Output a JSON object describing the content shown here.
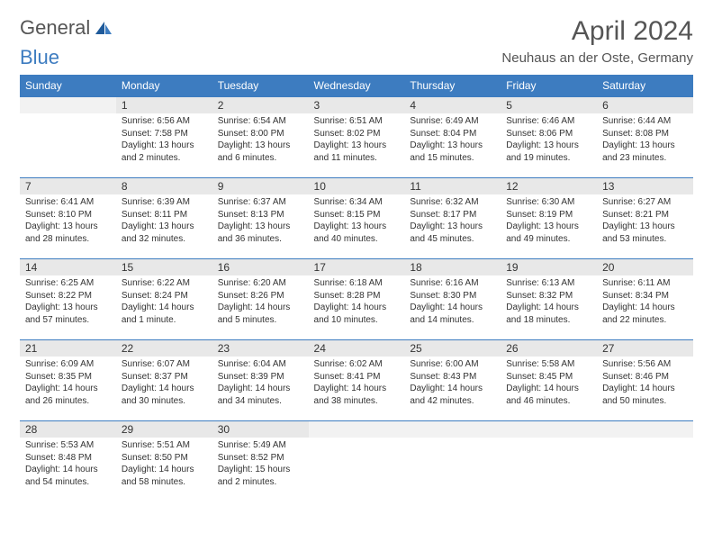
{
  "logo": {
    "text1": "General",
    "text2": "Blue"
  },
  "title": "April 2024",
  "location": "Neuhaus an der Oste, Germany",
  "colors": {
    "header_bg": "#3d7cc0",
    "header_text": "#ffffff",
    "daynum_bg": "#e8e8e8",
    "border": "#3d7cc0",
    "body_bg": "#ffffff",
    "text": "#333333"
  },
  "weekdays": [
    "Sunday",
    "Monday",
    "Tuesday",
    "Wednesday",
    "Thursday",
    "Friday",
    "Saturday"
  ],
  "typography": {
    "title_fontsize": 30,
    "location_fontsize": 15,
    "weekday_fontsize": 12,
    "cell_fontsize": 10
  },
  "layout": {
    "columns": 7,
    "rows": 5,
    "first_day_column_index": 1
  },
  "days": [
    {
      "n": "1",
      "sunrise": "Sunrise: 6:56 AM",
      "sunset": "Sunset: 7:58 PM",
      "daylight": "Daylight: 13 hours and 2 minutes."
    },
    {
      "n": "2",
      "sunrise": "Sunrise: 6:54 AM",
      "sunset": "Sunset: 8:00 PM",
      "daylight": "Daylight: 13 hours and 6 minutes."
    },
    {
      "n": "3",
      "sunrise": "Sunrise: 6:51 AM",
      "sunset": "Sunset: 8:02 PM",
      "daylight": "Daylight: 13 hours and 11 minutes."
    },
    {
      "n": "4",
      "sunrise": "Sunrise: 6:49 AM",
      "sunset": "Sunset: 8:04 PM",
      "daylight": "Daylight: 13 hours and 15 minutes."
    },
    {
      "n": "5",
      "sunrise": "Sunrise: 6:46 AM",
      "sunset": "Sunset: 8:06 PM",
      "daylight": "Daylight: 13 hours and 19 minutes."
    },
    {
      "n": "6",
      "sunrise": "Sunrise: 6:44 AM",
      "sunset": "Sunset: 8:08 PM",
      "daylight": "Daylight: 13 hours and 23 minutes."
    },
    {
      "n": "7",
      "sunrise": "Sunrise: 6:41 AM",
      "sunset": "Sunset: 8:10 PM",
      "daylight": "Daylight: 13 hours and 28 minutes."
    },
    {
      "n": "8",
      "sunrise": "Sunrise: 6:39 AM",
      "sunset": "Sunset: 8:11 PM",
      "daylight": "Daylight: 13 hours and 32 minutes."
    },
    {
      "n": "9",
      "sunrise": "Sunrise: 6:37 AM",
      "sunset": "Sunset: 8:13 PM",
      "daylight": "Daylight: 13 hours and 36 minutes."
    },
    {
      "n": "10",
      "sunrise": "Sunrise: 6:34 AM",
      "sunset": "Sunset: 8:15 PM",
      "daylight": "Daylight: 13 hours and 40 minutes."
    },
    {
      "n": "11",
      "sunrise": "Sunrise: 6:32 AM",
      "sunset": "Sunset: 8:17 PM",
      "daylight": "Daylight: 13 hours and 45 minutes."
    },
    {
      "n": "12",
      "sunrise": "Sunrise: 6:30 AM",
      "sunset": "Sunset: 8:19 PM",
      "daylight": "Daylight: 13 hours and 49 minutes."
    },
    {
      "n": "13",
      "sunrise": "Sunrise: 6:27 AM",
      "sunset": "Sunset: 8:21 PM",
      "daylight": "Daylight: 13 hours and 53 minutes."
    },
    {
      "n": "14",
      "sunrise": "Sunrise: 6:25 AM",
      "sunset": "Sunset: 8:22 PM",
      "daylight": "Daylight: 13 hours and 57 minutes."
    },
    {
      "n": "15",
      "sunrise": "Sunrise: 6:22 AM",
      "sunset": "Sunset: 8:24 PM",
      "daylight": "Daylight: 14 hours and 1 minute."
    },
    {
      "n": "16",
      "sunrise": "Sunrise: 6:20 AM",
      "sunset": "Sunset: 8:26 PM",
      "daylight": "Daylight: 14 hours and 5 minutes."
    },
    {
      "n": "17",
      "sunrise": "Sunrise: 6:18 AM",
      "sunset": "Sunset: 8:28 PM",
      "daylight": "Daylight: 14 hours and 10 minutes."
    },
    {
      "n": "18",
      "sunrise": "Sunrise: 6:16 AM",
      "sunset": "Sunset: 8:30 PM",
      "daylight": "Daylight: 14 hours and 14 minutes."
    },
    {
      "n": "19",
      "sunrise": "Sunrise: 6:13 AM",
      "sunset": "Sunset: 8:32 PM",
      "daylight": "Daylight: 14 hours and 18 minutes."
    },
    {
      "n": "20",
      "sunrise": "Sunrise: 6:11 AM",
      "sunset": "Sunset: 8:34 PM",
      "daylight": "Daylight: 14 hours and 22 minutes."
    },
    {
      "n": "21",
      "sunrise": "Sunrise: 6:09 AM",
      "sunset": "Sunset: 8:35 PM",
      "daylight": "Daylight: 14 hours and 26 minutes."
    },
    {
      "n": "22",
      "sunrise": "Sunrise: 6:07 AM",
      "sunset": "Sunset: 8:37 PM",
      "daylight": "Daylight: 14 hours and 30 minutes."
    },
    {
      "n": "23",
      "sunrise": "Sunrise: 6:04 AM",
      "sunset": "Sunset: 8:39 PM",
      "daylight": "Daylight: 14 hours and 34 minutes."
    },
    {
      "n": "24",
      "sunrise": "Sunrise: 6:02 AM",
      "sunset": "Sunset: 8:41 PM",
      "daylight": "Daylight: 14 hours and 38 minutes."
    },
    {
      "n": "25",
      "sunrise": "Sunrise: 6:00 AM",
      "sunset": "Sunset: 8:43 PM",
      "daylight": "Daylight: 14 hours and 42 minutes."
    },
    {
      "n": "26",
      "sunrise": "Sunrise: 5:58 AM",
      "sunset": "Sunset: 8:45 PM",
      "daylight": "Daylight: 14 hours and 46 minutes."
    },
    {
      "n": "27",
      "sunrise": "Sunrise: 5:56 AM",
      "sunset": "Sunset: 8:46 PM",
      "daylight": "Daylight: 14 hours and 50 minutes."
    },
    {
      "n": "28",
      "sunrise": "Sunrise: 5:53 AM",
      "sunset": "Sunset: 8:48 PM",
      "daylight": "Daylight: 14 hours and 54 minutes."
    },
    {
      "n": "29",
      "sunrise": "Sunrise: 5:51 AM",
      "sunset": "Sunset: 8:50 PM",
      "daylight": "Daylight: 14 hours and 58 minutes."
    },
    {
      "n": "30",
      "sunrise": "Sunrise: 5:49 AM",
      "sunset": "Sunset: 8:52 PM",
      "daylight": "Daylight: 15 hours and 2 minutes."
    }
  ]
}
